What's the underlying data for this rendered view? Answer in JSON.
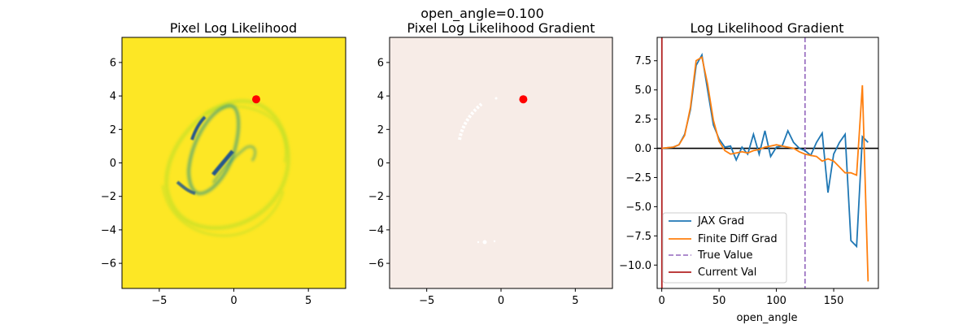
{
  "suptitle": "open_angle=0.100",
  "colors": {
    "yellow": "#fde725",
    "image_dark": "#26588c",
    "image_mid": "#21918c",
    "image_light": "#b5de2b",
    "grad_bg": "#f7ece7",
    "marker": "#ff0000",
    "jax": "#1f77b4",
    "finite": "#ff7f0e",
    "true_line": "#9467bd",
    "current_line": "#b22222",
    "zero_line": "#000000"
  },
  "chart_data": [
    {
      "type": "heatmap",
      "title": "Pixel Log Likelihood",
      "xlim": [
        -7.5,
        7.5
      ],
      "ylim": [
        -7.5,
        7.5
      ],
      "xticks": [
        -5,
        0,
        5
      ],
      "xtick_labels": [
        "−5",
        "0",
        "5"
      ],
      "yticks": [
        6,
        4,
        2,
        0,
        -2,
        -4,
        -6
      ],
      "ytick_labels": [
        "6",
        "4",
        "2",
        "0",
        "−2",
        "−4",
        "−6"
      ],
      "marker": {
        "x": 1.5,
        "y": 3.8
      }
    },
    {
      "type": "heatmap",
      "title": "Pixel Log Likelihood Gradient",
      "xlim": [
        -7.5,
        7.5
      ],
      "ylim": [
        -7.5,
        7.5
      ],
      "xticks": [
        -5,
        0,
        5
      ],
      "xtick_labels": [
        "−5",
        "0",
        "5"
      ],
      "yticks": [
        6,
        4,
        2,
        0,
        -2,
        -4,
        -6
      ],
      "ytick_labels": [
        "6",
        "4",
        "2",
        "0",
        "−2",
        "−4",
        "−6"
      ],
      "marker": {
        "x": 1.5,
        "y": 3.8
      }
    },
    {
      "type": "line",
      "title": "Log Likelihood Gradient",
      "xlabel": "open_angle",
      "ylabel": "",
      "xlim": [
        -4,
        189
      ],
      "ylim": [
        -12.0,
        9.5
      ],
      "xticks": [
        0,
        50,
        100,
        150
      ],
      "xtick_labels": [
        "0",
        "50",
        "100",
        "150"
      ],
      "yticks": [
        7.5,
        5.0,
        2.5,
        0.0,
        -2.5,
        -5.0,
        -7.5,
        -10.0
      ],
      "ytick_labels": [
        "7.5",
        "5.0",
        "2.5",
        "0.0",
        "−2.5",
        "−5.0",
        "−7.5",
        "−10.0"
      ],
      "hline": 0,
      "true_value": 125,
      "current_value": 0.1,
      "legend": {
        "placement": "lower-left",
        "entries": [
          "JAX Grad",
          "Finite Diff Grad",
          "True Value",
          "Current Val"
        ]
      },
      "series": [
        {
          "name": "JAX Grad",
          "x": [
            0,
            5,
            10,
            15,
            20,
            25,
            30,
            35,
            40,
            45,
            50,
            55,
            60,
            65,
            70,
            75,
            80,
            85,
            90,
            95,
            100,
            105,
            110,
            115,
            120,
            125,
            130,
            135,
            140,
            145,
            150,
            155,
            160,
            165,
            170,
            175,
            180
          ],
          "values": [
            0.0,
            0.05,
            0.1,
            0.3,
            1.2,
            3.3,
            7.1,
            8.0,
            5.0,
            2.0,
            0.8,
            0.1,
            0.2,
            -1.0,
            0.1,
            -0.5,
            1.2,
            -0.5,
            1.5,
            -0.7,
            0.1,
            0.2,
            1.5,
            0.5,
            0.0,
            -0.2,
            -0.6,
            0.5,
            1.3,
            -3.8,
            -0.5,
            0.5,
            1.2,
            -7.9,
            -8.4,
            1.0,
            0.5
          ]
        },
        {
          "name": "Finite Diff Grad",
          "x": [
            0,
            5,
            10,
            15,
            20,
            25,
            30,
            35,
            40,
            45,
            50,
            55,
            60,
            65,
            70,
            75,
            80,
            85,
            90,
            95,
            100,
            105,
            110,
            115,
            120,
            125,
            130,
            135,
            140,
            145,
            150,
            155,
            160,
            165,
            170,
            175,
            180
          ],
          "values": [
            0.0,
            0.05,
            0.1,
            0.3,
            1.1,
            3.5,
            7.5,
            7.8,
            5.5,
            2.4,
            0.6,
            -0.2,
            -0.5,
            -0.4,
            -0.3,
            -0.4,
            -0.2,
            -0.1,
            0.1,
            0.2,
            0.3,
            0.2,
            0.1,
            0.0,
            -0.3,
            -0.5,
            -0.6,
            -0.7,
            -1.1,
            -0.9,
            -1.1,
            -1.6,
            -2.1,
            -2.1,
            -2.3,
            5.4,
            -11.4
          ]
        }
      ]
    }
  ]
}
